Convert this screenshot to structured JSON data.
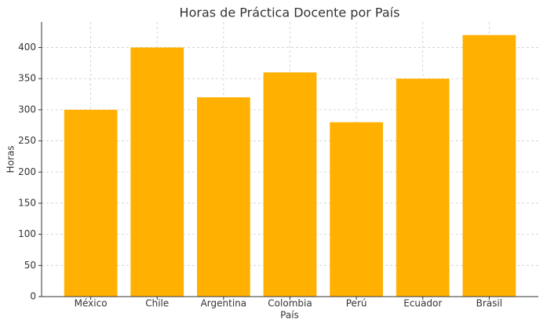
{
  "chart_data": {
    "type": "bar",
    "title": "Horas de Práctica Docente por País",
    "xlabel": "País",
    "ylabel": "Horas",
    "categories": [
      "México",
      "Chile",
      "Argentina",
      "Colombia",
      "Perú",
      "Ecuador",
      "Brasil"
    ],
    "values": [
      300,
      400,
      320,
      360,
      280,
      350,
      420
    ],
    "color": "#ffb000",
    "ylim": [
      0,
      441
    ],
    "yticks": [
      0,
      50,
      100,
      150,
      200,
      250,
      300,
      350,
      400
    ],
    "grid": true
  }
}
